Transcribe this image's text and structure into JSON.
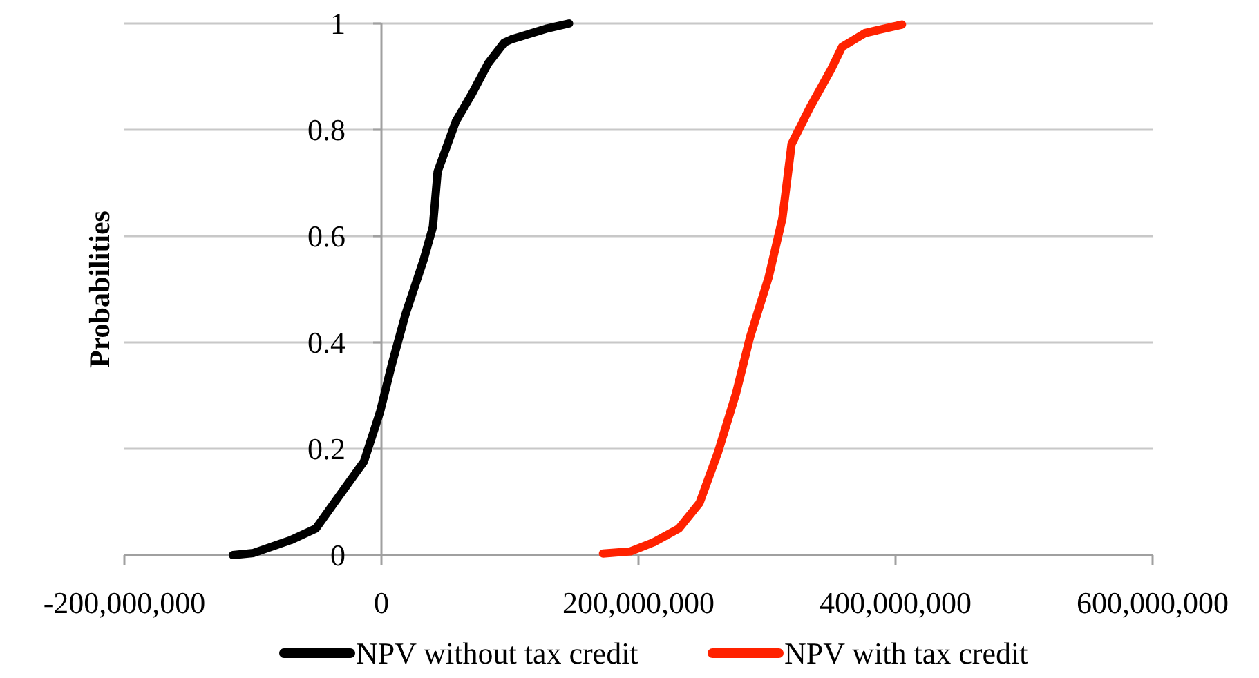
{
  "chart_data": {
    "type": "line",
    "ylabel": "Probabilities",
    "xlim": [
      -200000000,
      600000000
    ],
    "xticks": [
      {
        "value": -200000000,
        "label": "-200,000,000"
      },
      {
        "value": 0,
        "label": "0"
      },
      {
        "value": 200000000,
        "label": "200,000,000"
      },
      {
        "value": 400000000,
        "label": "400,000,000"
      },
      {
        "value": 600000000,
        "label": "600,000,000"
      }
    ],
    "ylim": [
      0,
      1
    ],
    "yticks": [
      0,
      0.2,
      0.4,
      0.6,
      0.8,
      1
    ],
    "grid": "y",
    "legend": "bottom",
    "marker": "none",
    "line_style": "solid",
    "series": [
      {
        "name": "NPV without tax credit",
        "color": "#000000",
        "x": [
          -115600000,
          -99500000,
          -70800000,
          -51000000,
          -36800000,
          -13600000,
          -1000000,
          7900000,
          18600000,
          32900000,
          40000000,
          43700000,
          57900000,
          70500000,
          83000000,
          95500000,
          101000000,
          128000000,
          146000000
        ],
        "values": [
          0,
          0.004,
          0.028,
          0.05,
          0.098,
          0.176,
          0.27,
          0.357,
          0.452,
          0.556,
          0.617,
          0.721,
          0.816,
          0.868,
          0.925,
          0.964,
          0.97,
          0.99,
          1
        ]
      },
      {
        "name": "NPV with tax credit",
        "color": "#ff2200",
        "x": [
          172400000,
          193800000,
          211700000,
          231400000,
          247500000,
          261800000,
          276100000,
          286800000,
          301200000,
          312000000,
          319100000,
          333400000,
          349500000,
          358400000,
          376300000,
          405000000
        ],
        "values": [
          0.003,
          0.007,
          0.024,
          0.05,
          0.098,
          0.193,
          0.306,
          0.41,
          0.522,
          0.634,
          0.773,
          0.842,
          0.912,
          0.956,
          0.982,
          0.998
        ]
      }
    ]
  }
}
